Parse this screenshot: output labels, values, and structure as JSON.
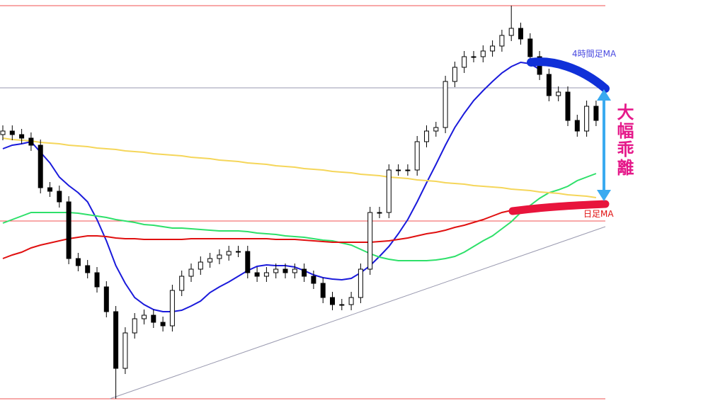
{
  "chart_data": {
    "type": "candlestick",
    "ylim": [
      0,
      576
    ],
    "open": [
      386,
      391,
      386,
      381,
      371,
      311,
      306,
      291,
      211,
      201,
      191,
      171,
      136,
      56,
      106,
      126,
      131,
      121,
      116,
      166,
      186,
      196,
      206,
      211,
      216,
      221,
      221,
      191,
      186,
      191,
      196,
      191,
      196,
      186,
      176,
      156,
      146,
      146,
      156,
      196,
      276,
      276,
      336,
      336,
      336,
      376,
      391,
      396,
      461,
      481,
      496,
      496,
      504,
      511,
      526,
      536,
      521,
      496,
      471,
      441,
      446,
      406,
      391,
      426
    ],
    "high": [
      399,
      399,
      394,
      389,
      379,
      319,
      314,
      299,
      219,
      209,
      199,
      179,
      144,
      114,
      134,
      139,
      139,
      129,
      174,
      194,
      204,
      214,
      219,
      224,
      229,
      229,
      229,
      199,
      199,
      204,
      204,
      204,
      204,
      194,
      184,
      164,
      154,
      164,
      204,
      284,
      284,
      344,
      344,
      344,
      384,
      399,
      404,
      469,
      489,
      504,
      504,
      512,
      519,
      534,
      568,
      544,
      529,
      504,
      479,
      454,
      454,
      414,
      434,
      434
    ],
    "low": [
      378,
      378,
      373,
      363,
      303,
      298,
      283,
      203,
      193,
      183,
      163,
      128,
      13,
      48,
      98,
      118,
      113,
      108,
      108,
      158,
      178,
      188,
      198,
      203,
      208,
      213,
      183,
      178,
      178,
      183,
      183,
      183,
      178,
      168,
      148,
      138,
      138,
      138,
      148,
      188,
      268,
      268,
      328,
      328,
      328,
      368,
      383,
      388,
      453,
      473,
      488,
      488,
      496,
      503,
      518,
      513,
      488,
      463,
      433,
      433,
      398,
      383,
      383,
      398
    ],
    "close": [
      391,
      386,
      381,
      371,
      311,
      306,
      291,
      211,
      201,
      191,
      171,
      136,
      56,
      106,
      126,
      131,
      121,
      116,
      166,
      186,
      196,
      206,
      211,
      216,
      221,
      221,
      191,
      186,
      191,
      196,
      191,
      196,
      186,
      176,
      156,
      146,
      146,
      156,
      196,
      276,
      276,
      336,
      336,
      336,
      376,
      391,
      396,
      461,
      481,
      496,
      496,
      504,
      511,
      526,
      536,
      521,
      496,
      471,
      441,
      446,
      406,
      391,
      426,
      406
    ],
    "up_color": "#ffffff",
    "down_color": "#000000",
    "series": [
      {
        "name": "4時間足MA",
        "color": "#1a1adb",
        "values": [
          366,
          371,
          373,
          376,
          361,
          346,
          326,
          314,
          304,
          291,
          266,
          236,
          201,
          176,
          156,
          146,
          139,
          136,
          136,
          138,
          144,
          151,
          163,
          171,
          178,
          186,
          194,
          200,
          202,
          201,
          201,
          199,
          194,
          188,
          184,
          182,
          181,
          183,
          191,
          201,
          214,
          228,
          246,
          266,
          291,
          318,
          344,
          371,
          396,
          416,
          434,
          448,
          461,
          473,
          482,
          488,
          486,
          478,
          null,
          null,
          null,
          null,
          null,
          null
        ]
      },
      {
        "color": "#2ee06a",
        "values": [
          261,
          266,
          271,
          276,
          276,
          276,
          276,
          276,
          275,
          273,
          271,
          269,
          266,
          264,
          262,
          259,
          258,
          256,
          254,
          254,
          253,
          252,
          251,
          250,
          250,
          250,
          249,
          247,
          246,
          245,
          243,
          242,
          241,
          239,
          237,
          236,
          233,
          230,
          224,
          218,
          213,
          210,
          208,
          208,
          208,
          208,
          209,
          211,
          214,
          220,
          228,
          236,
          243,
          253,
          263,
          276,
          286,
          296,
          304,
          308,
          313,
          321,
          326,
          331
        ]
      },
      {
        "name": "日足MA",
        "color": "#e01010",
        "values": [
          211,
          216,
          220,
          226,
          230,
          233,
          236,
          239,
          241,
          243,
          243,
          242,
          240,
          239,
          239,
          238,
          238,
          238,
          238,
          238,
          239,
          239,
          239,
          239,
          239,
          239,
          239,
          239,
          239,
          238,
          238,
          238,
          237,
          236,
          235,
          234,
          234,
          234,
          234,
          234,
          235,
          236,
          238,
          240,
          243,
          246,
          248,
          251,
          255,
          258,
          262,
          266,
          271,
          276,
          279,
          281,
          null,
          null,
          null,
          null,
          null,
          null,
          null,
          null
        ]
      },
      {
        "color": "#f5d65a",
        "values": [
          381,
          379,
          378,
          377,
          375,
          374,
          373,
          371,
          370,
          369,
          367,
          366,
          365,
          363,
          362,
          361,
          359,
          358,
          357,
          356,
          354,
          353,
          352,
          350,
          349,
          348,
          346,
          345,
          344,
          342,
          341,
          340,
          338,
          337,
          336,
          334,
          333,
          332,
          330,
          329,
          328,
          326,
          325,
          324,
          322,
          321,
          320,
          318,
          317,
          316,
          314,
          313,
          312,
          311,
          309,
          308,
          307,
          305,
          304,
          303,
          301,
          300,
          299,
          297
        ]
      }
    ],
    "annotation": "大幅乖離"
  }
}
